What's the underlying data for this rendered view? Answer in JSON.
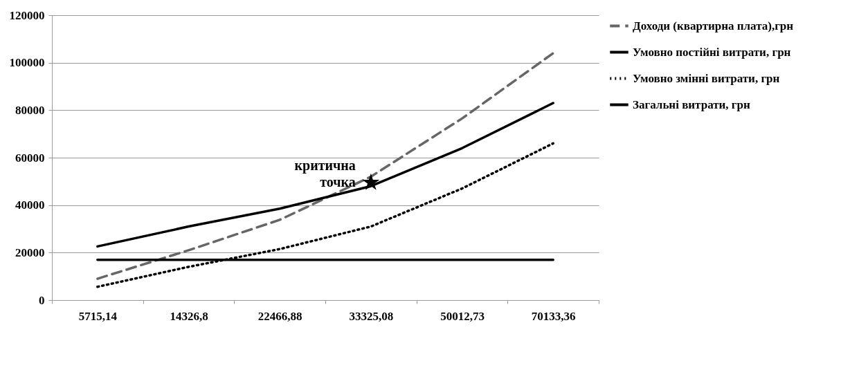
{
  "chart_data": {
    "type": "line",
    "categories": [
      "5715,14",
      "14326,8",
      "22466,88",
      "33325,08",
      "50012,73",
      "70133,36"
    ],
    "series": [
      {
        "name": "Доходи (квартирна плата),грн",
        "color": "#666666",
        "line_style": "dashed",
        "values": [
          9000,
          21000,
          33800,
          52000,
          76500,
          104000
        ]
      },
      {
        "name": "Умовно постійні витрати, грн",
        "color": "#000000",
        "line_style": "solid",
        "values": [
          17000,
          17000,
          17000,
          17000,
          17000,
          17000
        ]
      },
      {
        "name": "Умовно змінні витрати, грн",
        "color": "#000000",
        "line_style": "dotted",
        "values": [
          5600,
          14000,
          21500,
          31000,
          47000,
          66000
        ]
      },
      {
        "name": "Загальні витрати, грн",
        "color": "#000000",
        "line_style": "solid",
        "values": [
          22600,
          31000,
          38500,
          48000,
          64000,
          83000
        ]
      },
      {
        "type": "scatter",
        "marker": "star",
        "color": "#000000",
        "x": [
          "33325,08"
        ],
        "values": [
          49500
        ]
      }
    ],
    "annotations": [
      {
        "text": "критична точка",
        "x": "33325,08",
        "y": 49500
      }
    ],
    "ylim": [
      0,
      120000
    ],
    "yticks": [
      0,
      20000,
      40000,
      60000,
      80000,
      100000,
      120000
    ],
    "grid": "y",
    "legend": "right"
  }
}
